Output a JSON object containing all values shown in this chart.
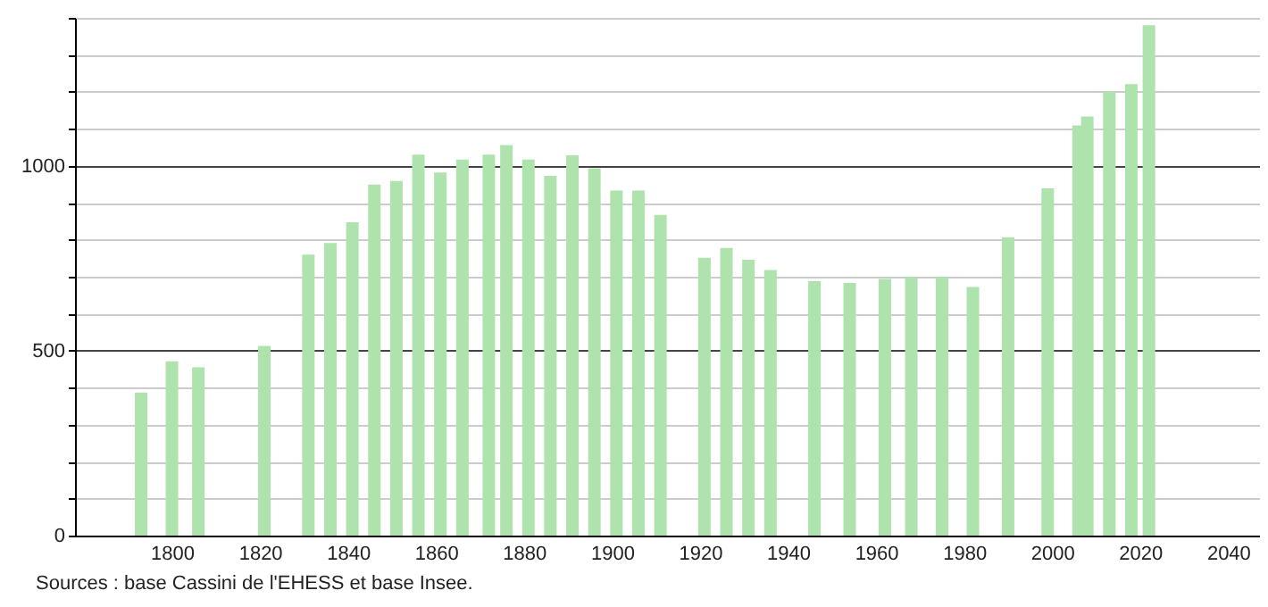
{
  "chart_data": {
    "type": "bar",
    "color": "#aee3ae",
    "x": [
      1793,
      1800,
      1806,
      1821,
      1831,
      1836,
      1841,
      1846,
      1851,
      1856,
      1861,
      1866,
      1872,
      1876,
      1881,
      1886,
      1891,
      1896,
      1901,
      1906,
      1911,
      1921,
      1926,
      1931,
      1936,
      1946,
      1954,
      1962,
      1968,
      1975,
      1982,
      1990,
      1999,
      2006,
      2008,
      2013,
      2018,
      2022
    ],
    "values": [
      387,
      471,
      455,
      513,
      760,
      791,
      847,
      949,
      959,
      1030,
      982,
      1017,
      1030,
      1056,
      1017,
      973,
      1028,
      993,
      933,
      933,
      867,
      751,
      778,
      746,
      718,
      688,
      683,
      694,
      699,
      699,
      672,
      807,
      939,
      1109,
      1133,
      1200,
      1221,
      1380
    ],
    "xlim": [
      1780,
      2045
    ],
    "xticks": [
      1800,
      1820,
      1840,
      1860,
      1880,
      1900,
      1920,
      1940,
      1960,
      1980,
      2000,
      2020,
      2040
    ],
    "ylim": [
      0,
      1400
    ],
    "yticks": [
      0,
      {
        "value": 100,
        "label": null
      },
      {
        "value": 200,
        "label": null
      },
      {
        "value": 300,
        "label": null
      },
      {
        "value": 400,
        "label": null
      },
      500,
      {
        "value": 600,
        "label": null
      },
      {
        "value": 700,
        "label": null
      },
      {
        "value": 800,
        "label": null
      },
      {
        "value": 900,
        "label": null
      },
      1000,
      {
        "value": 1100,
        "label": null
      },
      {
        "value": 1200,
        "label": null
      },
      {
        "value": 1300,
        "label": null
      },
      {
        "value": 1400,
        "label": null
      }
    ],
    "grid": "y",
    "annotations": [
      "Sources : base Cassini de l'EHESS et base Insee."
    ]
  }
}
